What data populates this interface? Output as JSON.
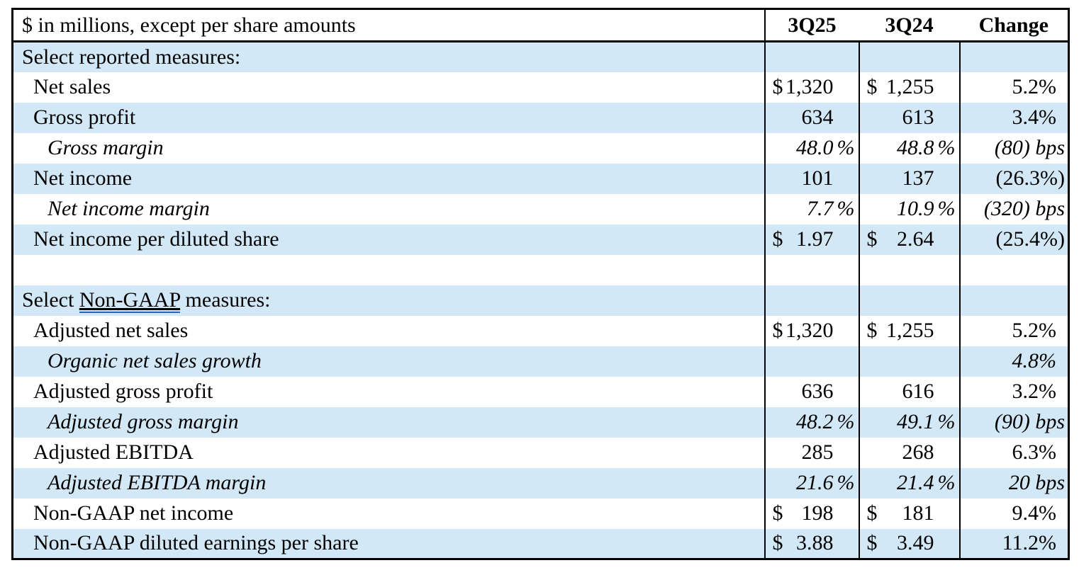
{
  "table": {
    "unit_note": "$ in millions, except per share amounts",
    "columns": {
      "c1": "3Q25",
      "c2": "3Q24",
      "c3": "Change"
    },
    "colors": {
      "band_blue": "#d3e8f7",
      "border_black": "#000000",
      "link_underline": "#3060b0",
      "text": "#000000"
    },
    "rows": [
      {
        "label": "Select reported measures:"
      },
      {
        "label": "Net sales",
        "cur25": "$",
        "q25": "1,320",
        "cur24": "$",
        "q24": "1,255",
        "change": "5.2%"
      },
      {
        "label": "Gross profit",
        "q25": "634",
        "q24": "613",
        "change": "3.4%"
      },
      {
        "label": "Gross margin",
        "q25": "48.0",
        "sfx25": "%",
        "q24": "48.8",
        "sfx24": "%",
        "change": "(80) bps"
      },
      {
        "label": "Net income",
        "q25": "101",
        "q24": "137",
        "change": "(26.3%)"
      },
      {
        "label": "Net income margin",
        "q25": "7.7",
        "sfx25": "%",
        "q24": "10.9",
        "sfx24": "%",
        "change": "(320) bps"
      },
      {
        "label": "Net income per diluted share",
        "cur25": "$",
        "q25": "1.97",
        "cur24": "$",
        "q24": "2.64",
        "change": "(25.4%)"
      },
      {
        "label": ""
      },
      {
        "label_prefix": "Select ",
        "label_link": "Non-GAAP",
        "label_suffix": " measures:"
      },
      {
        "label": "Adjusted net sales",
        "cur25": "$",
        "q25": "1,320",
        "cur24": "$",
        "q24": "1,255",
        "change": "5.2%"
      },
      {
        "label": "Organic net sales growth",
        "change": "4.8%"
      },
      {
        "label": "Adjusted gross profit",
        "q25": "636",
        "q24": "616",
        "change": "3.2%"
      },
      {
        "label": "Adjusted gross margin",
        "q25": "48.2",
        "sfx25": "%",
        "q24": "49.1",
        "sfx24": "%",
        "change": "(90) bps"
      },
      {
        "label": "Adjusted EBITDA",
        "q25": "285",
        "q24": "268",
        "change": "6.3%"
      },
      {
        "label": "Adjusted EBITDA margin",
        "q25": "21.6",
        "sfx25": "%",
        "q24": "21.4",
        "sfx24": "%",
        "change": "20 bps"
      },
      {
        "label": "Non-GAAP net income",
        "cur25": "$",
        "q25": "198",
        "cur24": "$",
        "q24": "181",
        "change": "9.4%"
      },
      {
        "label": "Non-GAAP diluted earnings per share",
        "cur25": "$",
        "q25": "3.88",
        "cur24": "$",
        "q24": "3.49",
        "change": "11.2%"
      }
    ]
  }
}
